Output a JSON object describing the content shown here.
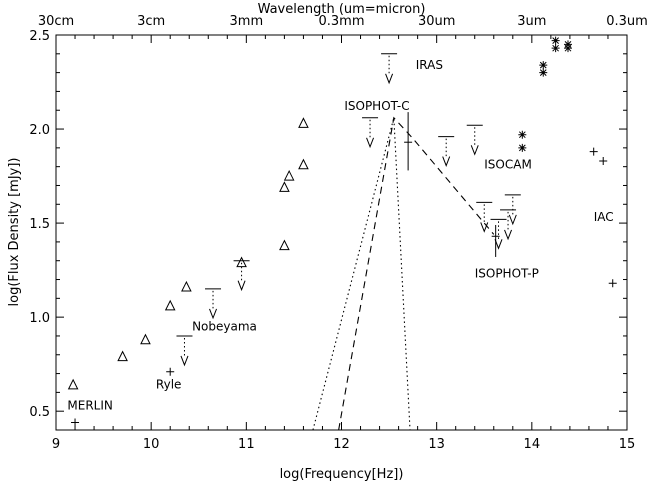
{
  "chart_data": {
    "type": "scatter",
    "xlabel": "log(Frequency[Hz])",
    "ylabel": "log(Flux Density [mJy])",
    "top_axis_label": "Wavelength (um=micron)",
    "xlim": [
      9,
      15
    ],
    "ylim": [
      0.4,
      2.5
    ],
    "x_ticks": [
      {
        "value": 9,
        "label": "9"
      },
      {
        "value": 10,
        "label": "10"
      },
      {
        "value": 11,
        "label": "11"
      },
      {
        "value": 12,
        "label": "12"
      },
      {
        "value": 13,
        "label": "13"
      },
      {
        "value": 14,
        "label": "14"
      },
      {
        "value": 15,
        "label": "15"
      }
    ],
    "y_ticks": [
      {
        "value": 0.5,
        "label": "0.5"
      },
      {
        "value": 1.0,
        "label": "1.0"
      },
      {
        "value": 1.5,
        "label": "1.5"
      },
      {
        "value": 2.0,
        "label": "2.0"
      },
      {
        "value": 2.5,
        "label": "2.5"
      }
    ],
    "top_ticks": [
      {
        "value": 9,
        "label": "30cm"
      },
      {
        "value": 10,
        "label": "3cm"
      },
      {
        "value": 11,
        "label": "3mm"
      },
      {
        "value": 12,
        "label": "0.3mm"
      },
      {
        "value": 13,
        "label": "30um"
      },
      {
        "value": 14,
        "label": "3um"
      },
      {
        "value": 15,
        "label": "0.3um"
      }
    ],
    "series": [
      {
        "marker": "triangle",
        "points": [
          [
            9.18,
            0.64
          ],
          [
            9.7,
            0.79
          ],
          [
            9.94,
            0.88
          ],
          [
            10.2,
            1.06
          ],
          [
            10.37,
            1.16
          ],
          [
            10.95,
            1.29
          ],
          [
            11.4,
            1.38
          ],
          [
            11.4,
            1.69
          ],
          [
            11.45,
            1.75
          ],
          [
            11.6,
            1.81
          ],
          [
            11.6,
            2.03
          ]
        ]
      },
      {
        "marker": "plus",
        "points": [
          [
            9.2,
            0.44
          ],
          [
            10.2,
            0.71
          ],
          [
            14.65,
            1.88
          ],
          [
            14.75,
            1.83
          ],
          [
            14.85,
            1.18
          ]
        ]
      },
      {
        "marker": "asterisk",
        "points": [
          [
            14.12,
            2.3
          ],
          [
            14.12,
            2.34
          ],
          [
            14.25,
            2.43
          ],
          [
            14.25,
            2.47
          ],
          [
            14.38,
            2.43
          ],
          [
            14.38,
            2.45
          ],
          [
            13.9,
            1.9
          ],
          [
            13.9,
            1.97
          ]
        ]
      },
      {
        "marker": "upper-limit",
        "points": [
          [
            10.65,
            1.15
          ],
          [
            10.35,
            0.9
          ],
          [
            10.95,
            1.3
          ],
          [
            12.5,
            2.4
          ],
          [
            12.3,
            2.06
          ],
          [
            13.1,
            1.96
          ],
          [
            13.4,
            2.02
          ],
          [
            13.5,
            1.61
          ],
          [
            13.65,
            1.52
          ],
          [
            13.75,
            1.57
          ],
          [
            13.8,
            1.65
          ]
        ]
      },
      {
        "marker": "errorbar",
        "points": [
          {
            "x": 12.7,
            "y": 1.93,
            "low": 1.78,
            "high": 2.09
          },
          {
            "x": 13.62,
            "y": 1.43,
            "low": 1.32,
            "high": 1.49
          }
        ]
      }
    ],
    "curves": [
      {
        "style": "dashed",
        "points": [
          [
            11.97,
            0.4
          ],
          [
            12.55,
            2.06
          ],
          [
            12.75,
            1.95
          ],
          [
            13.6,
            1.44
          ]
        ]
      },
      {
        "style": "dotted",
        "points": [
          [
            11.7,
            0.4
          ],
          [
            12.55,
            2.06
          ],
          [
            12.72,
            0.4
          ]
        ]
      }
    ],
    "annotations": [
      {
        "text": "MERLIN",
        "x": 9.12,
        "y": 0.51
      },
      {
        "text": "Ryle",
        "x": 10.05,
        "y": 0.62
      },
      {
        "text": "Nobeyama",
        "x": 10.43,
        "y": 0.93
      },
      {
        "text": "IRAS",
        "x": 12.78,
        "y": 2.32
      },
      {
        "text": "ISOPHOT-C",
        "x": 12.03,
        "y": 2.1
      },
      {
        "text": "ISOCAM",
        "x": 13.5,
        "y": 1.79
      },
      {
        "text": "IAC",
        "x": 14.65,
        "y": 1.51
      },
      {
        "text": "ISOPHOT-P",
        "x": 13.4,
        "y": 1.21
      }
    ]
  }
}
